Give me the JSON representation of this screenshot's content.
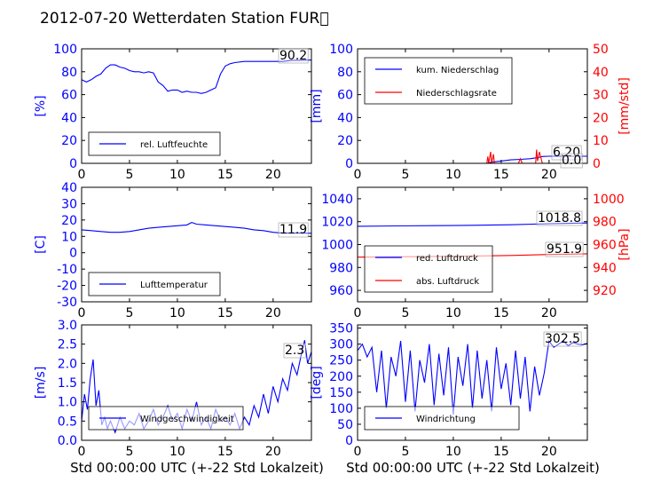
{
  "title": "2012-07-20 Wetterdaten Station FUR\u0000",
  "xlabel": "Std 00:00:00 UTC (+-22 Std Lokalzeit)",
  "chart_data": [
    {
      "type": "line",
      "ylabel": "[%]",
      "xlim": [
        0,
        24
      ],
      "ylim": [
        0,
        100
      ],
      "xticks": [
        0,
        5,
        10,
        15,
        20
      ],
      "yticks": [
        0,
        20,
        40,
        60,
        80,
        100
      ],
      "legend": "lower-left",
      "last_value": "90.2",
      "series": [
        {
          "name": "rel. Luftfeuchte",
          "color": "#0000ff",
          "axis": "left",
          "x": [
            0,
            0.5,
            1,
            1.5,
            2,
            2.5,
            3,
            3.5,
            4,
            4.5,
            5,
            5.5,
            6,
            6.5,
            7,
            7.5,
            8,
            8.5,
            9,
            9.5,
            10,
            10.5,
            11,
            11.5,
            12,
            12.5,
            13,
            13.5,
            14,
            14.5,
            15,
            15.5,
            16,
            17,
            18,
            19,
            20,
            21,
            22,
            23,
            24
          ],
          "y": [
            73,
            71,
            73,
            76,
            78,
            83,
            86,
            86,
            84,
            83,
            81,
            80,
            80,
            79,
            80,
            79,
            71,
            68,
            63,
            64,
            64,
            62,
            63,
            62,
            62,
            61,
            62,
            64,
            66,
            78,
            85,
            87,
            88,
            89,
            89,
            89,
            89,
            89,
            90,
            90,
            90.2
          ]
        }
      ]
    },
    {
      "type": "line",
      "ylabel": "[mm]",
      "ylabel2": "[mm/std]",
      "xlim": [
        0,
        24
      ],
      "ylim": [
        0,
        100
      ],
      "ylim2": [
        0,
        50
      ],
      "xticks": [
        0,
        5,
        10,
        15,
        20
      ],
      "yticks": [
        0,
        20,
        40,
        60,
        80,
        100
      ],
      "yticks2": [
        0,
        10,
        20,
        30,
        40,
        50
      ],
      "legend": "top-left",
      "last_values": [
        "6.20",
        "0.0"
      ],
      "series": [
        {
          "name": "kum. Niederschlag",
          "color": "#0000ff",
          "axis": "left",
          "x": [
            0,
            13.5,
            14,
            15,
            16,
            17,
            18,
            18.8,
            19.3,
            20,
            22,
            24
          ],
          "y": [
            0,
            0,
            1,
            2,
            3,
            3.5,
            4,
            5,
            6,
            6.2,
            6.2,
            6.2
          ]
        },
        {
          "name": "Niederschlagsrate",
          "color": "#ff0000",
          "axis": "right",
          "x": [
            0,
            13.5,
            13.6,
            13.7,
            13.9,
            14.0,
            14.2,
            14.3,
            14.5,
            16.8,
            17.0,
            17.2,
            18.6,
            18.7,
            18.8,
            19.0,
            19.3,
            19.5,
            24
          ],
          "y": [
            0,
            0,
            3,
            0,
            5,
            0,
            4,
            0,
            0,
            0,
            2,
            0,
            0,
            6,
            1,
            5,
            0,
            0,
            0
          ]
        }
      ]
    },
    {
      "type": "line",
      "ylabel": "[C]",
      "xlim": [
        0,
        24
      ],
      "ylim": [
        -30,
        40
      ],
      "xticks": [
        0,
        5,
        10,
        15,
        20
      ],
      "yticks": [
        -30,
        -20,
        -10,
        0,
        10,
        20,
        30,
        40
      ],
      "legend": "lower-left",
      "last_value": "11.9",
      "series": [
        {
          "name": "Lufttemperatur",
          "color": "#0000ff",
          "axis": "left",
          "x": [
            0,
            1,
            2,
            3,
            4,
            5,
            6,
            7,
            8,
            9,
            10,
            11,
            11.5,
            12,
            13,
            14,
            15,
            16,
            17,
            18,
            19,
            20,
            21,
            22,
            23,
            24
          ],
          "y": [
            14,
            13.5,
            13,
            12.5,
            12.5,
            13,
            14,
            15,
            15.5,
            16,
            16.5,
            17,
            18.5,
            17.5,
            17,
            16.5,
            16,
            15.5,
            15,
            14,
            13.5,
            12.5,
            12,
            12,
            12,
            11.9
          ]
        }
      ]
    },
    {
      "type": "line",
      "ylabel2": "[hPa]",
      "xlim": [
        0,
        24
      ],
      "ylim": [
        950,
        1050
      ],
      "ylim2": [
        910,
        1010
      ],
      "xticks": [
        0,
        5,
        10,
        15,
        20
      ],
      "yticks": [
        960,
        980,
        1000,
        1020,
        1040
      ],
      "yticks2": [
        920,
        940,
        960,
        980,
        1000
      ],
      "legend": "lower-left",
      "last_values": [
        "1018.8",
        "951.9"
      ],
      "series": [
        {
          "name": "red. Luftdruck",
          "color": "#0000ff",
          "axis": "left",
          "x": [
            0,
            4,
            8,
            12,
            16,
            20,
            24
          ],
          "y": [
            1016,
            1016.3,
            1016.5,
            1016.8,
            1017.3,
            1018.2,
            1018.8
          ]
        },
        {
          "name": "abs. Luftdruck",
          "color": "#ff0000",
          "axis": "right",
          "x": [
            0,
            4,
            8,
            12,
            16,
            20,
            24
          ],
          "y": [
            949,
            949.3,
            949.6,
            950,
            950.5,
            951.3,
            951.9
          ]
        }
      ]
    },
    {
      "type": "line",
      "ylabel": "[m/s]",
      "xlim": [
        0,
        24
      ],
      "ylim": [
        0,
        3
      ],
      "xticks": [
        0,
        5,
        10,
        15,
        20
      ],
      "yticks": [
        0,
        0.5,
        1.0,
        1.5,
        2.0,
        2.5,
        3.0
      ],
      "legend": "lower-left",
      "last_value": "2.3",
      "series": [
        {
          "name": "Windgeschwindigkeit",
          "color": "#0000ff",
          "axis": "left",
          "x": [
            0,
            0.3,
            0.6,
            0.9,
            1.2,
            1.5,
            1.8,
            2.1,
            2.4,
            2.7,
            3.0,
            3.5,
            4.0,
            4.5,
            5.0,
            5.5,
            6.0,
            6.5,
            7.0,
            7.5,
            8.0,
            8.5,
            9.0,
            9.5,
            10.0,
            10.5,
            11.0,
            11.5,
            12.0,
            12.5,
            13.0,
            13.5,
            14.0,
            14.5,
            15.0,
            15.5,
            16.0,
            16.5,
            17.0,
            17.5,
            18.0,
            18.5,
            19.0,
            19.5,
            20.0,
            20.5,
            21.0,
            21.5,
            22.0,
            22.5,
            23.0,
            23.3,
            23.6,
            24.0
          ],
          "y": [
            0.5,
            1.2,
            0.8,
            1.6,
            2.1,
            0.9,
            1.3,
            0.4,
            0.6,
            0.3,
            0.5,
            0.2,
            0.6,
            0.3,
            0.5,
            0.4,
            0.7,
            0.3,
            0.5,
            0.8,
            0.4,
            0.6,
            0.9,
            0.5,
            0.7,
            0.3,
            0.8,
            0.5,
            1.0,
            0.4,
            0.6,
            0.3,
            0.8,
            0.5,
            0.6,
            0.4,
            0.7,
            0.3,
            0.6,
            0.4,
            0.9,
            0.6,
            1.2,
            0.7,
            1.4,
            1.0,
            1.6,
            1.3,
            2.0,
            1.7,
            2.3,
            2.6,
            2.0,
            2.3
          ]
        }
      ]
    },
    {
      "type": "line",
      "ylabel": "[deg]",
      "xlim": [
        0,
        24
      ],
      "ylim": [
        0,
        360
      ],
      "xticks": [
        0,
        5,
        10,
        15,
        20
      ],
      "yticks": [
        0,
        50,
        100,
        150,
        200,
        250,
        300,
        350
      ],
      "legend": "lower-left",
      "last_value": "302.5",
      "series": [
        {
          "name": "Windrichtung",
          "color": "#0000ff",
          "axis": "left",
          "x": [
            0,
            0.5,
            1.0,
            1.5,
            2.0,
            2.5,
            3.0,
            3.5,
            4.0,
            4.5,
            5.0,
            5.5,
            6.0,
            6.5,
            7.0,
            7.5,
            8.0,
            8.5,
            9.0,
            9.5,
            10.0,
            10.5,
            11.0,
            11.5,
            12.0,
            12.5,
            13.0,
            13.5,
            14.0,
            14.5,
            15.0,
            15.5,
            16.0,
            16.5,
            17.0,
            17.5,
            18.0,
            18.5,
            19.0,
            19.5,
            20.0,
            20.5,
            21.0,
            21.5,
            22.0,
            22.5,
            23.0,
            23.5,
            24.0
          ],
          "y": [
            280,
            300,
            260,
            290,
            150,
            280,
            100,
            260,
            200,
            310,
            120,
            280,
            90,
            250,
            180,
            300,
            110,
            270,
            140,
            290,
            80,
            260,
            170,
            300,
            100,
            280,
            130,
            250,
            90,
            290,
            160,
            240,
            110,
            280,
            130,
            260,
            90,
            230,
            140,
            210,
            310,
            290,
            300,
            310,
            295,
            305,
            300,
            298,
            302.5
          ]
        }
      ]
    }
  ]
}
